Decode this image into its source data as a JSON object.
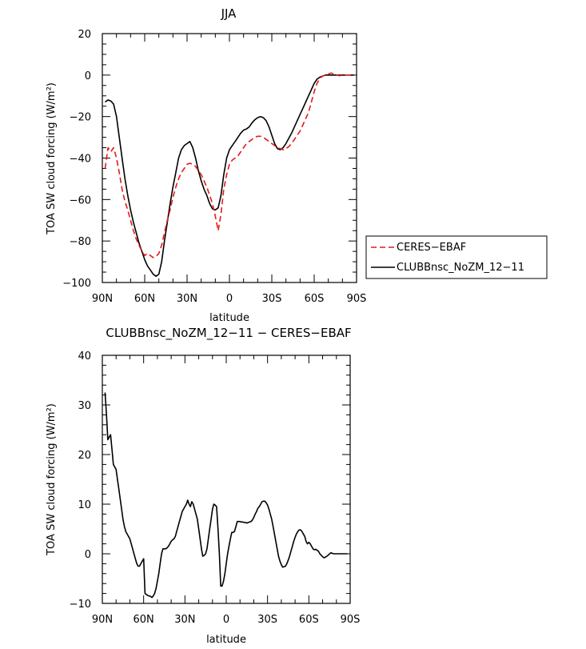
{
  "chart_data": [
    {
      "type": "line",
      "title": "JJA",
      "xlabel": "latitude",
      "ylabel": "TOA SW cloud forcing (W/m²)",
      "xlim": [
        90,
        -90
      ],
      "ylim": [
        -100,
        20
      ],
      "xticks": [
        "90N",
        "60N",
        "30N",
        "0",
        "30S",
        "60S",
        "90S"
      ],
      "xtick_values": [
        90,
        60,
        30,
        0,
        -30,
        -60,
        -90
      ],
      "yticks": [
        20,
        0,
        -20,
        -40,
        -60,
        -80,
        -100
      ],
      "legend_position": "right",
      "series": [
        {
          "name": "CERES−EBAF",
          "color": "#e41a1c",
          "dash": "dashed",
          "x": [
            88,
            86,
            84,
            82,
            80,
            78,
            76,
            74,
            72,
            70,
            68,
            66,
            64,
            62,
            60,
            58,
            56,
            54,
            52,
            50,
            48,
            46,
            44,
            42,
            40,
            38,
            36,
            34,
            32,
            30,
            28,
            26,
            24,
            22,
            20,
            18,
            16,
            14,
            12,
            10,
            8,
            6,
            4,
            2,
            0,
            -2,
            -4,
            -6,
            -8,
            -10,
            -12,
            -14,
            -16,
            -18,
            -20,
            -22,
            -24,
            -26,
            -28,
            -30,
            -32,
            -34,
            -36,
            -38,
            -40,
            -42,
            -44,
            -46,
            -48,
            -50,
            -52,
            -54,
            -56,
            -58,
            -60,
            -62,
            -64,
            -66,
            -68,
            -70,
            -72,
            -74,
            -76,
            -78,
            -80,
            -82,
            -84,
            -86,
            -88
          ],
          "values": [
            -45,
            -35,
            -37,
            -35,
            -40,
            -47,
            -55,
            -61,
            -65,
            -70,
            -75,
            -79,
            -82,
            -85,
            -87,
            -86,
            -87,
            -88,
            -87.5,
            -86,
            -82,
            -76,
            -70,
            -65,
            -59,
            -54,
            -50,
            -47,
            -45,
            -43,
            -42.5,
            -43,
            -44,
            -46,
            -48,
            -51,
            -54,
            -58,
            -62,
            -68,
            -75,
            -67,
            -55,
            -48,
            -43,
            -41,
            -40,
            -39,
            -37,
            -35,
            -33,
            -32,
            -31,
            -30,
            -29.5,
            -29.5,
            -30,
            -31,
            -32,
            -33,
            -34,
            -35,
            -35.5,
            -36,
            -35.5,
            -34.5,
            -33,
            -31,
            -29,
            -27,
            -24,
            -21,
            -18,
            -13,
            -8,
            -4,
            -1.5,
            -0.5,
            0,
            0.5,
            1,
            0.5,
            0,
            -0.3,
            0,
            0,
            0,
            0,
            0
          ]
        },
        {
          "name": "CLUBBnsc_NoZM_12−11",
          "color": "#000000",
          "dash": "solid",
          "x": [
            88,
            86,
            84,
            82,
            80,
            78,
            76,
            74,
            72,
            70,
            68,
            66,
            64,
            62,
            60,
            58,
            56,
            54,
            52,
            50,
            48,
            46,
            44,
            42,
            40,
            38,
            36,
            34,
            32,
            30,
            28,
            26,
            24,
            22,
            20,
            18,
            16,
            14,
            12,
            10,
            8,
            6,
            4,
            2,
            0,
            -2,
            -4,
            -6,
            -8,
            -10,
            -12,
            -14,
            -16,
            -18,
            -20,
            -22,
            -24,
            -26,
            -28,
            -30,
            -32,
            -34,
            -36,
            -38,
            -40,
            -42,
            -44,
            -46,
            -48,
            -50,
            -52,
            -54,
            -56,
            -58,
            -60,
            -62,
            -64,
            -66,
            -68,
            -70,
            -72,
            -74,
            -76,
            -78,
            -80,
            -82,
            -84,
            -86,
            -88
          ],
          "values": [
            -13,
            -12,
            -12.5,
            -14,
            -20,
            -30,
            -40,
            -50,
            -58,
            -65,
            -71,
            -76,
            -81,
            -85,
            -89,
            -92,
            -94,
            -96,
            -97,
            -96,
            -90,
            -80,
            -71,
            -62,
            -54,
            -47,
            -40,
            -36,
            -34,
            -33,
            -32,
            -35,
            -40,
            -46,
            -51,
            -55,
            -58,
            -62,
            -64.5,
            -65,
            -64,
            -58,
            -48,
            -40,
            -36,
            -34,
            -32,
            -30,
            -28,
            -26.5,
            -26,
            -25,
            -23,
            -21.5,
            -20.5,
            -20,
            -20.5,
            -22,
            -25,
            -29,
            -33,
            -35.5,
            -36,
            -35,
            -33,
            -30.5,
            -28,
            -25,
            -22,
            -19,
            -16,
            -13,
            -10,
            -7,
            -4,
            -2,
            -1,
            -0.5,
            0,
            0,
            0,
            0,
            0,
            0,
            0,
            0,
            0,
            0,
            0
          ]
        }
      ]
    },
    {
      "type": "line",
      "title": "CLUBBnsc_NoZM_12−11  −  CERES−EBAF",
      "xlabel": "latitude",
      "ylabel": "TOA SW cloud forcing (W/m²)",
      "xlim": [
        90,
        -90
      ],
      "ylim": [
        -10,
        40
      ],
      "xticks": [
        "90N",
        "60N",
        "30N",
        "0",
        "30S",
        "60S",
        "90S"
      ],
      "xtick_values": [
        90,
        60,
        30,
        0,
        -30,
        -60,
        -90
      ],
      "yticks": [
        40,
        30,
        20,
        10,
        0,
        -10
      ],
      "series": [
        {
          "color": "#000000",
          "dash": "solid",
          "x": [
            88,
            87,
            86,
            85,
            84,
            83,
            82,
            81,
            80,
            79,
            78,
            77,
            76,
            75,
            74,
            73,
            72,
            71,
            70,
            69,
            68,
            67,
            66,
            65,
            64,
            63,
            62,
            61,
            60,
            59,
            58,
            57,
            56,
            55,
            54,
            53,
            52,
            51,
            50,
            49,
            48,
            47,
            46,
            45,
            44,
            43,
            42,
            41,
            40,
            39,
            38,
            37,
            36,
            35,
            34,
            33,
            32,
            31,
            30,
            29,
            28,
            27,
            26,
            25,
            24,
            23,
            22,
            21,
            20,
            19,
            18,
            17,
            16,
            15,
            14,
            13,
            12,
            11,
            10,
            9,
            8,
            7,
            6,
            5,
            4,
            3,
            2,
            1,
            0,
            -1,
            -2,
            -3,
            -4,
            -5,
            -6,
            -7,
            -8,
            -9,
            -10,
            -11,
            -12,
            -13,
            -14,
            -15,
            -16,
            -17,
            -18,
            -19,
            -20,
            -21,
            -22,
            -23,
            -24,
            -25,
            -26,
            -27,
            -28,
            -29,
            -30,
            -31,
            -32,
            -33,
            -34,
            -35,
            -36,
            -37,
            -38,
            -39,
            -40,
            -41,
            -42,
            -43,
            -44,
            -45,
            -46,
            -47,
            -48,
            -49,
            -50,
            -51,
            -52,
            -53,
            -54,
            -55,
            -56,
            -57,
            -58,
            -59,
            -60,
            -61,
            -62,
            -63,
            -64,
            -65,
            -66,
            -67,
            -68,
            -69,
            -70,
            -71,
            -72,
            -73,
            -74,
            -75,
            -76,
            -77,
            -78,
            -79,
            -80,
            -81,
            -82,
            -83,
            -84,
            -85,
            -86,
            -87,
            -88
          ],
          "values": [
            32.5,
            28,
            23,
            23.5,
            24,
            21,
            18,
            17.5,
            17,
            15,
            13,
            11,
            9,
            7,
            5.5,
            4.5,
            4,
            3.5,
            3,
            2,
            1,
            0,
            -1,
            -2,
            -2.5,
            -2.5,
            -2,
            -1.5,
            -1,
            -8,
            -8.2,
            -8.4,
            -8.5,
            -8.6,
            -8.8,
            -8.5,
            -8,
            -7,
            -5.5,
            -4,
            -2,
            0,
            1,
            1,
            1,
            1.2,
            1.5,
            2,
            2.5,
            2.8,
            3,
            3.5,
            4.5,
            5.5,
            6.5,
            7.5,
            8.5,
            9,
            9.5,
            10,
            10.8,
            10,
            9.5,
            10.5,
            10,
            9,
            8,
            7,
            5,
            3,
            1,
            -0.5,
            -0.3,
            0,
            1,
            3,
            5,
            7,
            9,
            10,
            9.8,
            9.5,
            5,
            0,
            -6.5,
            -6.5,
            -5.5,
            -4,
            -2,
            0,
            1.5,
            3,
            4.3,
            4.3,
            4.5,
            5.5,
            6.5,
            6.5,
            6.5,
            6.4,
            6.4,
            6.3,
            6.3,
            6.2,
            6.3,
            6.4,
            6.5,
            6.8,
            7.3,
            8,
            8.5,
            9.2,
            9.5,
            10,
            10.5,
            10.6,
            10.6,
            10.3,
            9.8,
            9,
            8,
            7,
            5.5,
            4,
            2.5,
            1,
            -0.5,
            -1.5,
            -2.2,
            -2.7,
            -2.6,
            -2.5,
            -2,
            -1.3,
            -0.5,
            0.5,
            1.5,
            2.5,
            3.3,
            4,
            4.5,
            4.8,
            4.8,
            4.5,
            4,
            3.5,
            2.5,
            2,
            2.3,
            2,
            1.5,
            1,
            0.8,
            0.9,
            0.7,
            0.5,
            0,
            -0.3,
            -0.6,
            -0.8,
            -0.7,
            -0.5,
            -0.3,
            0,
            0.2,
            0.1,
            0,
            0,
            0,
            0,
            0,
            0,
            0,
            0,
            0,
            0,
            0
          ]
        }
      ]
    }
  ]
}
